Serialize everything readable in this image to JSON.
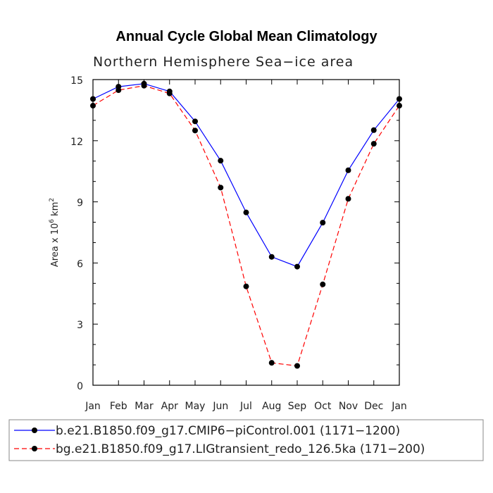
{
  "chart_data": {
    "type": "line",
    "title": "Annual Cycle Global Mean Climatology",
    "subtitle": "Northern Hemisphere Sea−ice area",
    "ylabel": "Area x 10",
    "ylabel_exp": "6",
    "ylabel_unit": " km",
    "ylabel_unit_exp": "2",
    "categories": [
      "Jan",
      "Feb",
      "Mar",
      "Apr",
      "May",
      "Jun",
      "Jul",
      "Aug",
      "Sep",
      "Oct",
      "Nov",
      "Dec",
      "Jan"
    ],
    "ylim": [
      0,
      15
    ],
    "yticks": [
      "0",
      "3",
      "6",
      "9",
      "12",
      "15"
    ],
    "grid": false,
    "legend_position": "bottom",
    "series": [
      {
        "name": "b.e21.B1850.f09_g17.CMIP6−piControl.001 (1171−1200)",
        "color": "#0000ff",
        "line_style": "solid",
        "values": [
          14.05,
          14.65,
          14.8,
          14.42,
          12.95,
          11.02,
          8.48,
          6.3,
          5.82,
          7.98,
          10.55,
          12.52,
          14.05
        ]
      },
      {
        "name": "bg.e21.B1850.f09_g17.LIGtransient_redo_126.5ka (171−200)",
        "color": "#ff0000",
        "line_style": "dashed",
        "values": [
          13.72,
          14.48,
          14.7,
          14.32,
          12.5,
          9.7,
          4.85,
          1.1,
          0.95,
          4.95,
          9.15,
          11.85,
          13.72
        ]
      }
    ]
  }
}
